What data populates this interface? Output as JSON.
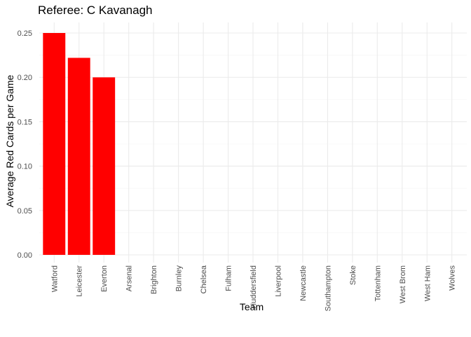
{
  "chart_data": {
    "type": "bar",
    "title": "Referee: C Kavanagh",
    "xlabel": "Team",
    "ylabel": "Average Red Cards per Game",
    "categories": [
      "Watford",
      "Leicester",
      "Everton",
      "Arsenal",
      "Brighton",
      "Burnley",
      "Chelsea",
      "Fulham",
      "Huddersfield",
      "Liverpool",
      "Newcastle",
      "Southampton",
      "Stoke",
      "Tottenham",
      "West Brom",
      "West Ham",
      "Wolves"
    ],
    "values": [
      0.25,
      0.222,
      0.2,
      0,
      0,
      0,
      0,
      0,
      0,
      0,
      0,
      0,
      0,
      0,
      0,
      0,
      0
    ],
    "ylim": [
      0,
      0.25
    ],
    "yticks": [
      "0.00",
      "0.05",
      "0.10",
      "0.15",
      "0.20",
      "0.25"
    ],
    "grid": true,
    "bar_color": "#ff0000"
  }
}
